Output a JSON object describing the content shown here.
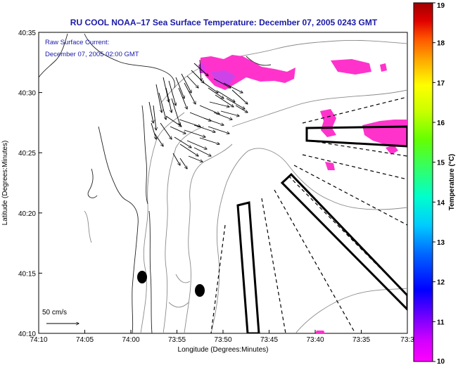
{
  "title": "RU COOL   NOAA–17  Sea Surface Temperature:  December 07, 2005 0243 GMT",
  "legend": {
    "line1": "Raw Surface Current:",
    "line2": "December 07, 2005 02:00 GMT"
  },
  "axes": {
    "xlabel": "Longitude (Degrees:Minutes)",
    "ylabel": "Latitude (Degrees:Minutes)",
    "xticks": [
      "74:10",
      "74:05",
      "74:00",
      "73:55",
      "73:50",
      "73:45",
      "73:40",
      "73:35",
      "73:3"
    ],
    "yticks": [
      "40:35",
      "40:30",
      "40:25",
      "40:20",
      "40:15",
      "40:10"
    ]
  },
  "scale": {
    "label": "50 cm/s"
  },
  "colorbar": {
    "label": "Temperature (°C)",
    "ticks": [
      "19",
      "18",
      "17",
      "16",
      "15",
      "14",
      "13",
      "12",
      "11",
      "10"
    ],
    "min": 10,
    "max": 19
  },
  "colors": {
    "title": "#1a1aa6",
    "sst_patch": "#ff33cc",
    "sst_patch_cool": "#cc44e8"
  }
}
